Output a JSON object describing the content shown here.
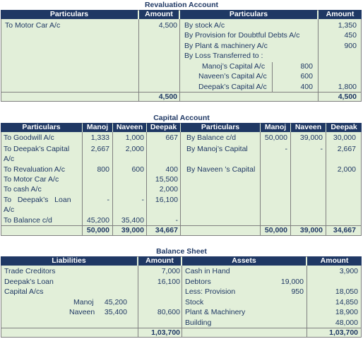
{
  "revaluation": {
    "title": "Revaluation Account",
    "headers": [
      "Particulars",
      "Amount",
      "Particulars",
      "Amount"
    ],
    "dr": [
      {
        "label": "To Motor Car A/c",
        "amount": "4,500"
      }
    ],
    "cr": [
      {
        "label": "By stock A/c",
        "amount": "1,350"
      },
      {
        "label": "By Provision for Doubtful Debts A/c",
        "amount": "450"
      },
      {
        "label": "By Plant & machinery A/c",
        "amount": "900"
      },
      {
        "label": "By Loss Transferred to :",
        "amount": ""
      }
    ],
    "loss_split": [
      {
        "label": "Manoj’s Capital A/c",
        "value": "800"
      },
      {
        "label": "Naveen’s Capital A/c",
        "value": "600"
      },
      {
        "label": "Deepak’s Capital A/c",
        "value": "400"
      }
    ],
    "loss_total": "1,800",
    "total_dr": "4,500",
    "total_cr": "4,500"
  },
  "capital": {
    "title": "Capital Account",
    "headers": [
      "Particulars",
      "Manoj",
      "Naveen",
      "Deepak",
      "Particulars",
      "Manoj",
      "Naveen",
      "Deepak"
    ],
    "dr": [
      {
        "l1": "To Goodwill A/c",
        "l2": "",
        "manoj": "1,333",
        "naveen": "1,000",
        "deepak": "667"
      },
      {
        "l1": "To Deepak’s Capital",
        "l2": "A/c",
        "manoj": "2,667",
        "naveen": "2,000",
        "deepak": ""
      },
      {
        "l1": "To Revaluation A/c",
        "l2": "",
        "manoj": "800",
        "naveen": "600",
        "deepak": "400"
      },
      {
        "l1": "To Motor Car A/c",
        "l2": "",
        "manoj": "",
        "naveen": "",
        "deepak": "15,500"
      },
      {
        "l1": "To cash A/c",
        "l2": "",
        "manoj": "",
        "naveen": "",
        "deepak": "2,000"
      },
      {
        "l1": "To   Deepak’s   Loan",
        "l2": "A/c",
        "manoj": "-",
        "naveen": "-",
        "deepak": "16,100"
      },
      {
        "l1": "To Balance c/d",
        "l2": "",
        "manoj": "45,200",
        "naveen": "35,400",
        "deepak": "-"
      }
    ],
    "cr": [
      {
        "label": "By Balance c/d",
        "manoj": "50,000",
        "naveen": "39,000",
        "deepak": "30,000"
      },
      {
        "label": "By Manoj’s Capital",
        "manoj": "-",
        "naveen": "-",
        "deepak": "2,667"
      },
      {
        "label": "By Naveen ’s Capital",
        "manoj": "",
        "naveen": "",
        "deepak": "2,000"
      }
    ],
    "totals_dr": {
      "manoj": "50,000",
      "naveen": "39,000",
      "deepak": "34,667"
    },
    "totals_cr": {
      "manoj": "50,000",
      "naveen": "39,000",
      "deepak": "34,667"
    }
  },
  "balance_sheet": {
    "title": "Balance Sheet",
    "headers": [
      "Liabilities",
      "Amount",
      "Assets",
      "Amount"
    ],
    "liabilities": [
      {
        "label": "Trade Creditors",
        "amount": "7,000"
      },
      {
        "label": "Deepak’s Loan",
        "amount": "16,100"
      },
      {
        "label": "Capital A/cs",
        "amount": ""
      }
    ],
    "capital_split": [
      {
        "name": "Manoj",
        "value": "45,200"
      },
      {
        "name": "Naveen",
        "value": "35,400"
      }
    ],
    "capital_total": "80,600",
    "assets": [
      {
        "label": "Cash in Hand",
        "sub": "",
        "amount": "3,900"
      },
      {
        "label": "Debtors",
        "sub": "19,000",
        "amount": ""
      },
      {
        "label": "Less: Provision",
        "sub": "950",
        "amount": "18,050"
      },
      {
        "label": "Stock",
        "sub": "",
        "amount": "14,850"
      },
      {
        "label": "Plant & Machinery",
        "sub": "",
        "amount": "18,900"
      },
      {
        "label": "Building",
        "sub": "",
        "amount": "48,000"
      }
    ],
    "total_liabilities": "1,03,700",
    "total_assets": "1,03,700"
  }
}
